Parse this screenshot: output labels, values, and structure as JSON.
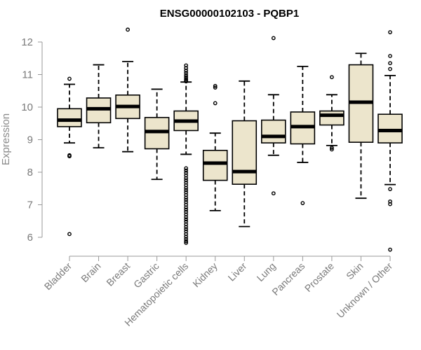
{
  "chart_data": {
    "type": "box",
    "title": "ENSG00000102103 - PQBP1",
    "xlabel": "",
    "ylabel": "Expression",
    "ylim": [
      5.5,
      12.5
    ],
    "yticks": [
      6,
      7,
      8,
      9,
      10,
      11,
      12
    ],
    "box_color": "#ece5cc",
    "categories": [
      "Bladder",
      "Brain",
      "Breast",
      "Gastric",
      "Hematopoietic cells",
      "Kidney",
      "Liver",
      "Lung",
      "Pancreas",
      "Prostate",
      "Skin",
      "Unknown / Other"
    ],
    "boxes": [
      {
        "whisker_low": 8.9,
        "q1": 9.4,
        "median": 9.6,
        "q3": 9.95,
        "whisker_high": 10.7,
        "outliers": [
          10.87,
          8.52,
          8.49,
          6.1
        ]
      },
      {
        "whisker_low": 8.75,
        "q1": 9.52,
        "median": 9.95,
        "q3": 10.28,
        "whisker_high": 11.3,
        "outliers": []
      },
      {
        "whisker_low": 8.63,
        "q1": 9.65,
        "median": 10.02,
        "q3": 10.37,
        "whisker_high": 11.4,
        "outliers": [
          12.38
        ]
      },
      {
        "whisker_low": 7.78,
        "q1": 8.72,
        "median": 9.25,
        "q3": 9.68,
        "whisker_high": 10.55,
        "outliers": []
      },
      {
        "whisker_low": 8.55,
        "q1": 9.28,
        "median": 9.57,
        "q3": 9.88,
        "whisker_high": 10.77,
        "outliers": [
          11.28,
          11.2,
          11.12,
          11.05,
          10.98,
          10.92,
          10.86,
          10.82,
          10.79,
          8.12,
          8.05,
          7.98,
          7.9,
          7.82,
          7.75,
          7.68,
          7.6,
          7.52,
          7.45,
          7.38,
          7.3,
          7.22,
          7.15,
          7.08,
          7.0,
          6.92,
          6.85,
          6.78,
          6.7,
          6.62,
          6.55,
          6.48,
          6.4,
          6.32,
          6.25,
          6.18,
          6.1,
          6.02,
          5.95,
          5.88,
          5.83
        ]
      },
      {
        "whisker_low": 6.82,
        "q1": 7.75,
        "median": 8.28,
        "q3": 8.67,
        "whisker_high": 9.2,
        "outliers": [
          10.65,
          10.6,
          10.12
        ]
      },
      {
        "whisker_low": 6.33,
        "q1": 7.63,
        "median": 8.02,
        "q3": 9.58,
        "whisker_high": 10.8,
        "outliers": []
      },
      {
        "whisker_low": 8.52,
        "q1": 8.9,
        "median": 9.1,
        "q3": 9.6,
        "whisker_high": 10.38,
        "outliers": [
          12.12,
          7.35
        ]
      },
      {
        "whisker_low": 8.3,
        "q1": 8.87,
        "median": 9.4,
        "q3": 9.85,
        "whisker_high": 11.25,
        "outliers": [
          7.05
        ]
      },
      {
        "whisker_low": 8.82,
        "q1": 9.45,
        "median": 9.75,
        "q3": 9.88,
        "whisker_high": 10.38,
        "outliers": [
          10.92,
          8.75,
          8.7
        ]
      },
      {
        "whisker_low": 7.2,
        "q1": 8.92,
        "median": 10.15,
        "q3": 11.3,
        "whisker_high": 11.65,
        "outliers": []
      },
      {
        "whisker_low": 7.62,
        "q1": 8.9,
        "median": 9.28,
        "q3": 9.78,
        "whisker_high": 10.97,
        "outliers": [
          12.3,
          11.57,
          11.35,
          11.17,
          7.48,
          7.1,
          7.02,
          5.62
        ]
      }
    ]
  }
}
